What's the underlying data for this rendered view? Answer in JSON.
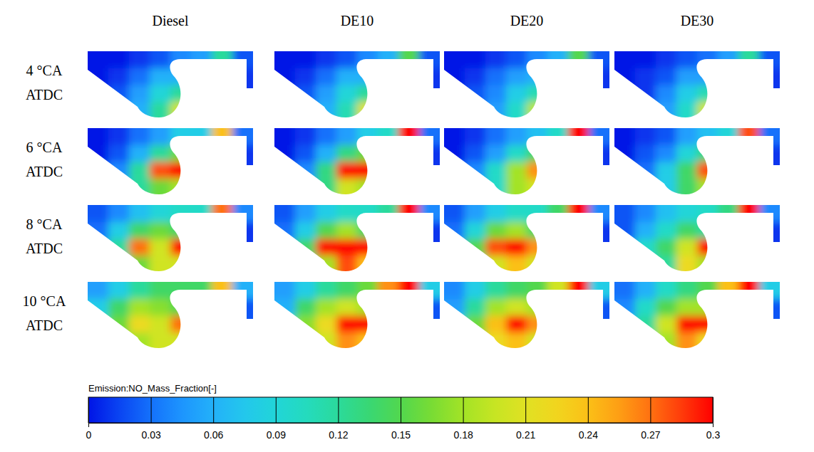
{
  "chart_data": {
    "type": "contour_grid",
    "columns": [
      "Diesel",
      "DE10",
      "DE20",
      "DE30"
    ],
    "rows": [
      "4 °CA ATDC",
      "6 °CA ATDC",
      "8 °CA ATDC",
      "10 °CA ATDC"
    ],
    "colorbar": {
      "title": "Emission:NO_Mass_Fraction[-]",
      "range": [
        0,
        0.3
      ],
      "ticks": [
        0,
        0.03,
        0.06,
        0.09,
        0.12,
        0.15,
        0.18,
        0.21,
        0.24,
        0.27,
        0.3
      ]
    },
    "cells": [
      [
        [
          [
            0,
            0,
            0.01,
            0.02,
            0.04,
            0.05,
            0.12,
            0.02
          ],
          [
            0,
            0.01,
            0.03,
            0.06,
            0.06,
            0.03,
            0.02,
            0.01
          ],
          [
            0,
            0.02,
            0.05,
            0.09,
            0.12,
            0.06,
            0.02,
            0.01
          ],
          [
            0,
            0.03,
            0.06,
            0.12,
            0.2,
            0.1,
            0.02,
            0.01
          ]
        ],
        [
          [
            0,
            0,
            0.01,
            0.02,
            0.04,
            0.06,
            0.15,
            0.02
          ],
          [
            0,
            0.01,
            0.03,
            0.06,
            0.06,
            0.03,
            0.02,
            0.01
          ],
          [
            0,
            0.02,
            0.05,
            0.09,
            0.12,
            0.06,
            0.02,
            0.01
          ],
          [
            0,
            0.03,
            0.06,
            0.11,
            0.21,
            0.1,
            0.02,
            0.01
          ]
        ],
        [
          [
            0,
            0,
            0.01,
            0.02,
            0.04,
            0.06,
            0.15,
            0.02
          ],
          [
            0,
            0.01,
            0.03,
            0.05,
            0.06,
            0.03,
            0.02,
            0.01
          ],
          [
            0,
            0.02,
            0.04,
            0.08,
            0.11,
            0.05,
            0.02,
            0.01
          ],
          [
            0,
            0.02,
            0.05,
            0.1,
            0.19,
            0.09,
            0.02,
            0.01
          ]
        ],
        [
          [
            0,
            0,
            0.01,
            0.02,
            0.03,
            0.05,
            0.12,
            0.02
          ],
          [
            0,
            0.01,
            0.02,
            0.05,
            0.05,
            0.03,
            0.02,
            0.01
          ],
          [
            0,
            0.01,
            0.04,
            0.08,
            0.11,
            0.05,
            0.02,
            0.01
          ],
          [
            0,
            0.02,
            0.05,
            0.1,
            0.2,
            0.08,
            0.02,
            0.01
          ]
        ]
      ],
      [
        [
          [
            0,
            0.01,
            0.03,
            0.05,
            0.08,
            0.08,
            0.24,
            0.03
          ],
          [
            0,
            0.02,
            0.06,
            0.12,
            0.16,
            0.06,
            0.02,
            0.01
          ],
          [
            0.01,
            0.04,
            0.12,
            0.28,
            0.3,
            0.1,
            0.02,
            0.01
          ],
          [
            0.01,
            0.05,
            0.12,
            0.16,
            0.18,
            0.1,
            0.02,
            0.01
          ]
        ],
        [
          [
            0,
            0.01,
            0.03,
            0.05,
            0.08,
            0.1,
            0.3,
            0.03
          ],
          [
            0,
            0.02,
            0.06,
            0.13,
            0.16,
            0.06,
            0.02,
            0.01
          ],
          [
            0.01,
            0.04,
            0.13,
            0.3,
            0.3,
            0.1,
            0.02,
            0.01
          ],
          [
            0.01,
            0.05,
            0.13,
            0.2,
            0.18,
            0.1,
            0.02,
            0.01
          ]
        ],
        [
          [
            0,
            0.01,
            0.03,
            0.05,
            0.07,
            0.1,
            0.3,
            0.03
          ],
          [
            0,
            0.02,
            0.05,
            0.1,
            0.14,
            0.06,
            0.02,
            0.01
          ],
          [
            0.01,
            0.04,
            0.1,
            0.18,
            0.26,
            0.1,
            0.02,
            0.01
          ],
          [
            0.01,
            0.04,
            0.1,
            0.18,
            0.2,
            0.1,
            0.02,
            0.01
          ]
        ],
        [
          [
            0,
            0.01,
            0.02,
            0.05,
            0.07,
            0.09,
            0.28,
            0.03
          ],
          [
            0,
            0.02,
            0.04,
            0.09,
            0.13,
            0.06,
            0.02,
            0.01
          ],
          [
            0.01,
            0.03,
            0.08,
            0.14,
            0.28,
            0.1,
            0.02,
            0.01
          ],
          [
            0.01,
            0.04,
            0.08,
            0.14,
            0.18,
            0.1,
            0.02,
            0.01
          ]
        ]
      ],
      [
        [
          [
            0.02,
            0.04,
            0.07,
            0.09,
            0.1,
            0.1,
            0.27,
            0.04
          ],
          [
            0.03,
            0.08,
            0.14,
            0.16,
            0.14,
            0.08,
            0.03,
            0.01
          ],
          [
            0.04,
            0.12,
            0.27,
            0.2,
            0.3,
            0.12,
            0.03,
            0.01
          ],
          [
            0.04,
            0.1,
            0.16,
            0.2,
            0.2,
            0.12,
            0.03,
            0.01
          ]
        ],
        [
          [
            0.02,
            0.05,
            0.08,
            0.1,
            0.1,
            0.12,
            0.3,
            0.04
          ],
          [
            0.03,
            0.08,
            0.15,
            0.18,
            0.14,
            0.08,
            0.03,
            0.01
          ],
          [
            0.04,
            0.14,
            0.3,
            0.3,
            0.3,
            0.14,
            0.03,
            0.01
          ],
          [
            0.04,
            0.12,
            0.18,
            0.28,
            0.24,
            0.14,
            0.03,
            0.01
          ]
        ],
        [
          [
            0.02,
            0.05,
            0.08,
            0.1,
            0.1,
            0.14,
            0.3,
            0.04
          ],
          [
            0.03,
            0.09,
            0.16,
            0.18,
            0.14,
            0.08,
            0.03,
            0.01
          ],
          [
            0.04,
            0.15,
            0.28,
            0.3,
            0.26,
            0.14,
            0.03,
            0.01
          ],
          [
            0.04,
            0.12,
            0.2,
            0.24,
            0.2,
            0.12,
            0.03,
            0.01
          ]
        ],
        [
          [
            0.02,
            0.04,
            0.07,
            0.09,
            0.1,
            0.13,
            0.3,
            0.04
          ],
          [
            0.02,
            0.06,
            0.1,
            0.14,
            0.12,
            0.08,
            0.03,
            0.01
          ],
          [
            0.03,
            0.1,
            0.14,
            0.2,
            0.3,
            0.12,
            0.03,
            0.01
          ],
          [
            0.03,
            0.08,
            0.12,
            0.22,
            0.18,
            0.12,
            0.03,
            0.01
          ]
        ]
      ],
      [
        [
          [
            0.05,
            0.08,
            0.12,
            0.14,
            0.14,
            0.14,
            0.24,
            0.06
          ],
          [
            0.08,
            0.14,
            0.18,
            0.17,
            0.15,
            0.1,
            0.05,
            0.02
          ],
          [
            0.1,
            0.16,
            0.22,
            0.2,
            0.27,
            0.14,
            0.05,
            0.02
          ],
          [
            0.1,
            0.15,
            0.18,
            0.2,
            0.2,
            0.14,
            0.05,
            0.02
          ]
        ],
        [
          [
            0.05,
            0.08,
            0.12,
            0.14,
            0.16,
            0.26,
            0.3,
            0.08
          ],
          [
            0.06,
            0.14,
            0.18,
            0.2,
            0.18,
            0.1,
            0.05,
            0.02
          ],
          [
            0.1,
            0.17,
            0.22,
            0.3,
            0.3,
            0.16,
            0.05,
            0.02
          ],
          [
            0.1,
            0.16,
            0.2,
            0.26,
            0.24,
            0.16,
            0.05,
            0.02
          ]
        ],
        [
          [
            0.04,
            0.08,
            0.12,
            0.14,
            0.15,
            0.2,
            0.3,
            0.08
          ],
          [
            0.05,
            0.12,
            0.18,
            0.2,
            0.18,
            0.1,
            0.05,
            0.02
          ],
          [
            0.08,
            0.16,
            0.24,
            0.3,
            0.26,
            0.16,
            0.05,
            0.02
          ],
          [
            0.08,
            0.15,
            0.22,
            0.24,
            0.2,
            0.16,
            0.05,
            0.02
          ]
        ],
        [
          [
            0.03,
            0.06,
            0.1,
            0.13,
            0.15,
            0.24,
            0.3,
            0.08
          ],
          [
            0.04,
            0.1,
            0.15,
            0.18,
            0.18,
            0.1,
            0.05,
            0.02
          ],
          [
            0.06,
            0.12,
            0.2,
            0.3,
            0.3,
            0.16,
            0.05,
            0.02
          ],
          [
            0.06,
            0.12,
            0.18,
            0.26,
            0.22,
            0.16,
            0.05,
            0.02
          ]
        ]
      ]
    ]
  }
}
